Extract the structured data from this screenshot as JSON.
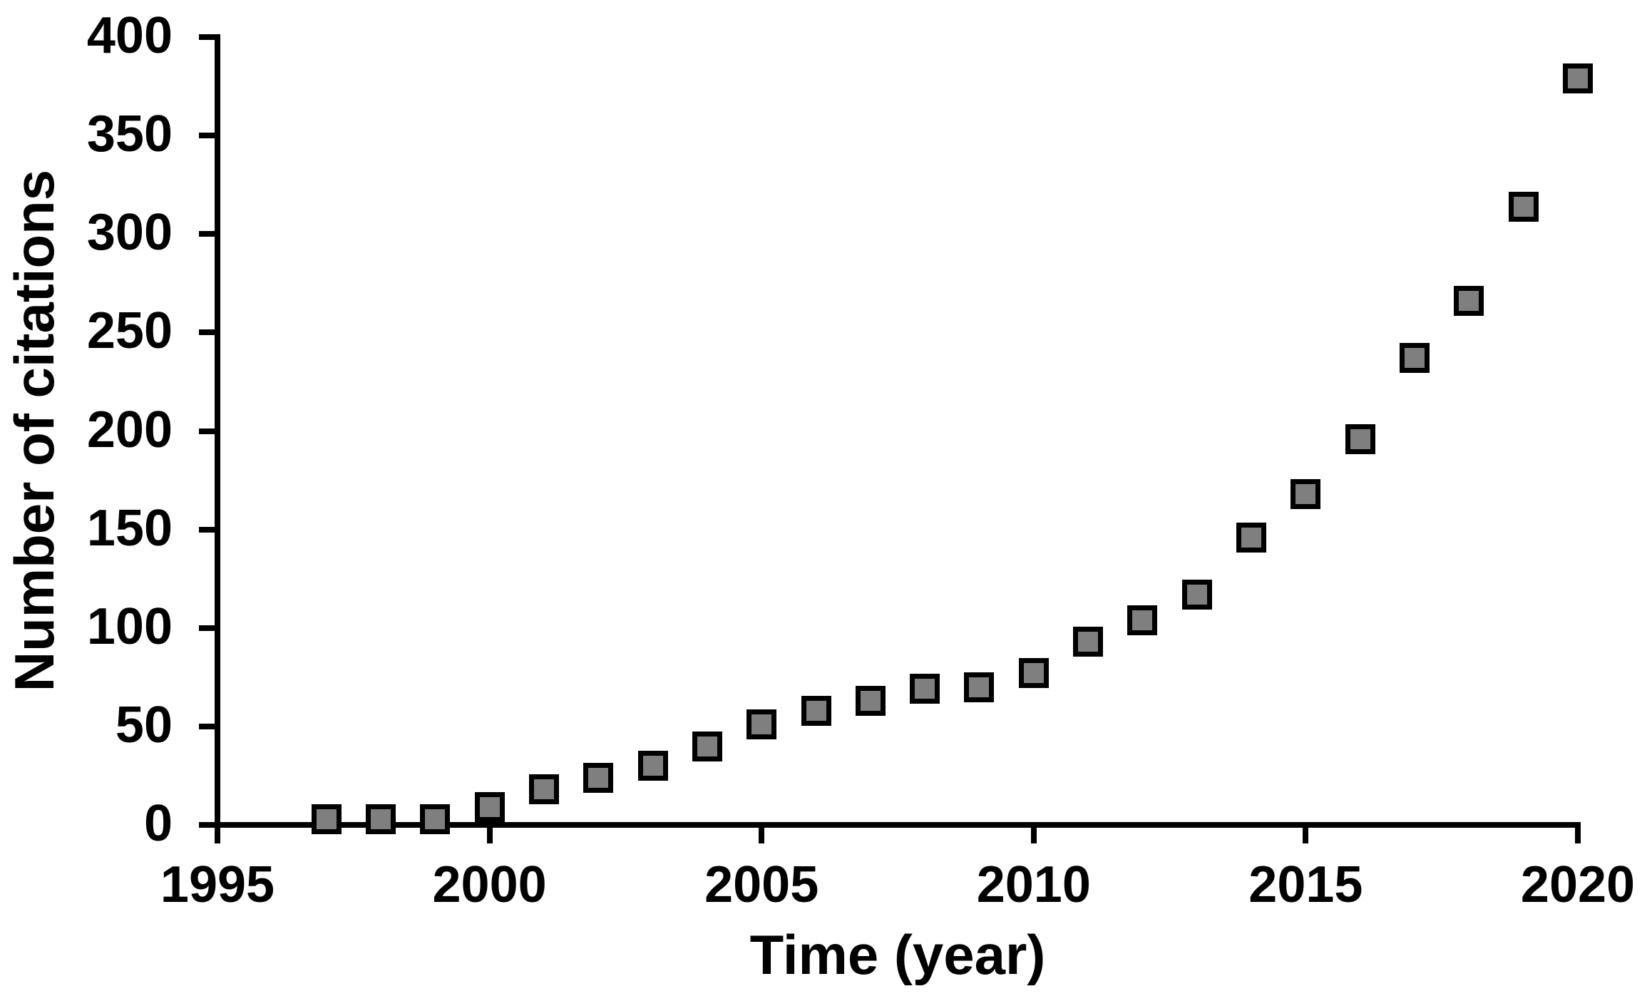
{
  "figure": {
    "background_color": "#ffffff",
    "text_color": "#000000",
    "axis_color": "#000000"
  },
  "chart_data": {
    "type": "scatter",
    "title": "",
    "xlabel": "Time (year)",
    "ylabel": "Number of citations",
    "series": [
      {
        "name": "Number of citations",
        "x": [
          1997,
          1998,
          1999,
          2000,
          2001,
          2002,
          2003,
          2004,
          2005,
          2006,
          2007,
          2008,
          2009,
          2010,
          2011,
          2012,
          2013,
          2014,
          2015,
          2016,
          2017,
          2018,
          2019,
          2020
        ],
        "y": [
          3,
          3,
          3,
          9,
          18,
          24,
          30,
          40,
          51,
          58,
          63,
          69,
          70,
          77,
          93,
          104,
          117,
          146,
          168,
          196,
          237,
          266,
          314,
          379
        ]
      }
    ],
    "xlim": [
      1995,
      2020
    ],
    "ylim": [
      0,
      400
    ],
    "x_ticks": [
      1995,
      2000,
      2005,
      2010,
      2015,
      2020
    ],
    "y_ticks": [
      0,
      50,
      100,
      150,
      200,
      250,
      300,
      350,
      400
    ],
    "grid": false,
    "legend_position": "none",
    "marker": {
      "shape": "square",
      "fill_color": "#7f7f7f",
      "border_color": "#000000"
    }
  }
}
